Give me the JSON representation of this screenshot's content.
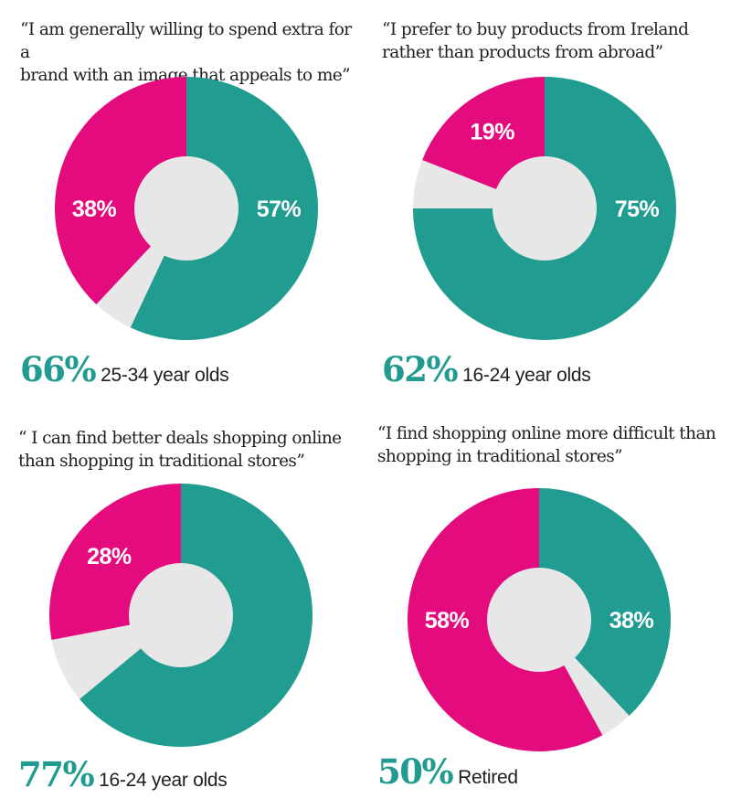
{
  "colors": {
    "agree": "#e30b7e",
    "disagree_other": "#209c91",
    "remainder": "#e8e7e8",
    "stat": "#219b90"
  },
  "chart_data": [
    {
      "type": "pie",
      "title": "“I am generally willing to spend extra for a\nbrand with an image that appeals to me”",
      "slices": [
        {
          "name": "teal",
          "value": 57,
          "label": "57%",
          "direction": "clockwise"
        },
        {
          "name": "magenta",
          "value": 38,
          "label": "38%",
          "direction": "counterclockwise"
        },
        {
          "name": "remainder",
          "value": 5,
          "label": ""
        }
      ],
      "callout": {
        "value": "66%",
        "group": "25-34 year olds"
      }
    },
    {
      "type": "pie",
      "title": "“I prefer to buy products from Ireland\nrather than products from abroad”",
      "slices": [
        {
          "name": "teal",
          "value": 75,
          "label": "75%",
          "direction": "clockwise"
        },
        {
          "name": "magenta",
          "value": 19,
          "label": "19%",
          "direction": "counterclockwise"
        },
        {
          "name": "remainder",
          "value": 6,
          "label": ""
        }
      ],
      "callout": {
        "value": "62%",
        "group": "16-24 year olds"
      }
    },
    {
      "type": "pie",
      "title": "“ I can find better deals shopping online\nthan shopping in traditional stores”",
      "slices": [
        {
          "name": "teal",
          "value": 64,
          "label": "",
          "direction": "clockwise"
        },
        {
          "name": "magenta",
          "value": 28,
          "label": "28%",
          "direction": "counterclockwise"
        },
        {
          "name": "remainder",
          "value": 8,
          "label": ""
        }
      ],
      "callout": {
        "value": "77%",
        "group": "16-24 year olds"
      }
    },
    {
      "type": "pie",
      "title": "“I find shopping online more difficult than\nshopping in traditional stores”",
      "slices": [
        {
          "name": "teal",
          "value": 38,
          "label": "38%",
          "direction": "clockwise"
        },
        {
          "name": "magenta",
          "value": 58,
          "label": "58%",
          "direction": "counterclockwise"
        },
        {
          "name": "remainder",
          "value": 4,
          "label": ""
        }
      ],
      "callout": {
        "value": "50%",
        "group": "Retired"
      }
    }
  ]
}
